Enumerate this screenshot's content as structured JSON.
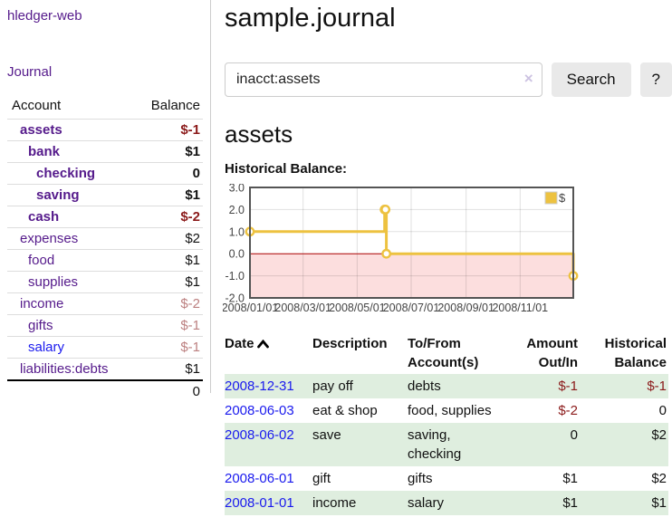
{
  "sidebar": {
    "brand": "hledger-web",
    "journal_link": "Journal",
    "accounts_table": {
      "headers": {
        "account": "Account",
        "balance": "Balance"
      },
      "rows": [
        {
          "account": "assets",
          "balance": "$-1",
          "depth": 0,
          "bold": true,
          "neg": "strong",
          "link": "visited"
        },
        {
          "account": "bank",
          "balance": "$1",
          "depth": 1,
          "bold": true,
          "neg": null,
          "link": "visited"
        },
        {
          "account": "checking",
          "balance": "0",
          "depth": 2,
          "bold": true,
          "neg": null,
          "link": "visited"
        },
        {
          "account": "saving",
          "balance": "$1",
          "depth": 2,
          "bold": true,
          "neg": null,
          "link": "visited"
        },
        {
          "account": "cash",
          "balance": "$-2",
          "depth": 1,
          "bold": true,
          "neg": "strong",
          "link": "visited"
        },
        {
          "account": "expenses",
          "balance": "$2",
          "depth": 0,
          "bold": false,
          "neg": null,
          "link": "visited"
        },
        {
          "account": "food",
          "balance": "$1",
          "depth": 1,
          "bold": false,
          "neg": null,
          "link": "visited"
        },
        {
          "account": "supplies",
          "balance": "$1",
          "depth": 1,
          "bold": false,
          "neg": null,
          "link": "visited"
        },
        {
          "account": "income",
          "balance": "$-2",
          "depth": 0,
          "bold": false,
          "neg": "soft",
          "link": "visited"
        },
        {
          "account": "gifts",
          "balance": "$-1",
          "depth": 1,
          "bold": false,
          "neg": "soft",
          "link": "visited"
        },
        {
          "account": "salary",
          "balance": "$-1",
          "depth": 1,
          "bold": false,
          "neg": "soft",
          "link": "new"
        },
        {
          "account": "liabilities:debts",
          "balance": "$1",
          "depth": 0,
          "bold": false,
          "neg": null,
          "link": "visited"
        }
      ],
      "total": "0"
    }
  },
  "header": {
    "title": "sample.journal"
  },
  "search": {
    "value": "inacct:assets",
    "clear_icon": "×",
    "button_label": "Search",
    "help_label": "?"
  },
  "register": {
    "heading": "assets",
    "chart_label": "Historical Balance:",
    "table": {
      "headers": {
        "date": "Date",
        "description": "Description",
        "accounts": "To/From Account(s)",
        "amount": "Amount Out/In",
        "balance": "Historical Balance"
      },
      "sort": "date-ascending",
      "rows": [
        {
          "date": "2008-12-31",
          "description": "pay off",
          "accounts": "debts",
          "amount": "$-1",
          "balance": "$-1",
          "amount_neg": true,
          "balance_neg": true
        },
        {
          "date": "2008-06-03",
          "description": "eat & shop",
          "accounts": "food, supplies",
          "amount": "$-2",
          "balance": "0",
          "amount_neg": true,
          "balance_neg": false
        },
        {
          "date": "2008-06-02",
          "description": "save",
          "accounts": "saving, checking",
          "amount": "0",
          "balance": "$2",
          "amount_neg": false,
          "balance_neg": false
        },
        {
          "date": "2008-06-01",
          "description": "gift",
          "accounts": "gifts",
          "amount": "$1",
          "balance": "$2",
          "amount_neg": false,
          "balance_neg": false
        },
        {
          "date": "2008-01-01",
          "description": "income",
          "accounts": "salary",
          "amount": "$1",
          "balance": "$1",
          "amount_neg": false,
          "balance_neg": false
        }
      ]
    }
  },
  "chart_data": {
    "type": "line",
    "step": true,
    "title": "Historical Balance:",
    "series": [
      {
        "name": "$",
        "color": "#edc240",
        "marker_fill": "#ffffff",
        "points": [
          [
            "2008-01-01",
            1
          ],
          [
            "2008-06-01",
            2
          ],
          [
            "2008-06-02",
            2
          ],
          [
            "2008-06-03",
            0
          ],
          [
            "2008-12-31",
            -1
          ]
        ]
      }
    ],
    "xrange": [
      "2008-01-01",
      "2008-12-31"
    ],
    "ylim": [
      -2,
      3
    ],
    "y_ticks": [
      3,
      2,
      1,
      0,
      -1,
      -2
    ],
    "x_ticks": [
      {
        "label": "2008/01/01",
        "date": "2008-01-01"
      },
      {
        "label": "2008/03/01",
        "date": "2008-03-01"
      },
      {
        "label": "2008/05/01",
        "date": "2008-05-01"
      },
      {
        "label": "2008/07/01",
        "date": "2008-07-01"
      },
      {
        "label": "2008/09/01",
        "date": "2008-09-01"
      },
      {
        "label": "2008/11/01",
        "date": "2008-11-01"
      }
    ],
    "grid": true,
    "legend_position": "top-right",
    "zero_line_color": "#aa0000",
    "negative_region_color": "#fcdede"
  },
  "colors": {
    "link_purple": "#551a8b",
    "link_blue": "#1a1aee",
    "negative_strong": "#8b1a1a",
    "negative_soft": "#bc8080",
    "row_stripe_green": "#dfeedf",
    "chart_line_gold": "#edc240"
  }
}
